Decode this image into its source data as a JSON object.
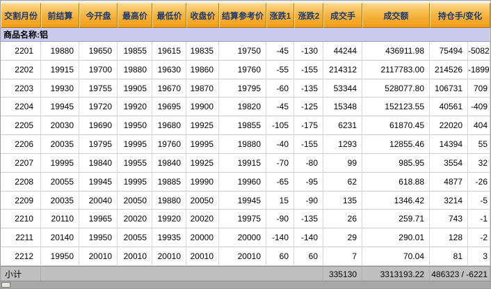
{
  "colors": {
    "header_bg_top": "#FCD98D",
    "header_bg_bottom": "#EF9C17",
    "header_text": "#1B3A70",
    "group_row_bg": "#CACAEC",
    "subtotal_bg": "#C0C0C0",
    "grid_line": "#CCCCCC"
  },
  "table": {
    "headers": [
      "交割月份",
      "前结算",
      "今开盘",
      "最高价",
      "最低价",
      "收盘价",
      "结算参考价",
      "涨跌1",
      "涨跌2",
      "成交手",
      "成交额",
      "持仓手/变化"
    ],
    "column_keys": [
      "month",
      "prev-settle",
      "open",
      "high",
      "low",
      "close",
      "settle-ref",
      "change1",
      "change2",
      "volume",
      "turnover",
      "open-interest",
      "oi-change"
    ],
    "group_label": "商品名称:铝",
    "rows": [
      [
        "2201",
        "19880",
        "19650",
        "19855",
        "19615",
        "19835",
        "19750",
        "-45",
        "-130",
        "44244",
        "436911.98",
        "75494",
        "-5082"
      ],
      [
        "2202",
        "19915",
        "19700",
        "19880",
        "19630",
        "19860",
        "19760",
        "-55",
        "-155",
        "214312",
        "2117783.00",
        "214526",
        "-1899"
      ],
      [
        "2203",
        "19930",
        "19755",
        "19905",
        "19670",
        "19870",
        "19795",
        "-60",
        "-135",
        "53344",
        "528077.80",
        "106731",
        "709"
      ],
      [
        "2204",
        "19945",
        "19720",
        "19920",
        "19695",
        "19900",
        "19820",
        "-45",
        "-125",
        "15348",
        "152123.55",
        "40561",
        "-409"
      ],
      [
        "2205",
        "20030",
        "19690",
        "19950",
        "19680",
        "19925",
        "19855",
        "-105",
        "-175",
        "6231",
        "61870.45",
        "22020",
        "404"
      ],
      [
        "2206",
        "20035",
        "19795",
        "19995",
        "19760",
        "19995",
        "19880",
        "-40",
        "-155",
        "1293",
        "12855.46",
        "14394",
        "55"
      ],
      [
        "2207",
        "19995",
        "19840",
        "19955",
        "19840",
        "19925",
        "19915",
        "-70",
        "-80",
        "99",
        "985.95",
        "3554",
        "32"
      ],
      [
        "2208",
        "20055",
        "19945",
        "19995",
        "19885",
        "19990",
        "19960",
        "-65",
        "-95",
        "62",
        "618.88",
        "4877",
        "-26"
      ],
      [
        "2209",
        "20035",
        "20040",
        "20050",
        "19880",
        "20050",
        "19945",
        "15",
        "-90",
        "135",
        "1346.42",
        "3214",
        "-5"
      ],
      [
        "2210",
        "20110",
        "19965",
        "20020",
        "19920",
        "20020",
        "19975",
        "-90",
        "-135",
        "26",
        "259.71",
        "743",
        "-1"
      ],
      [
        "2211",
        "20140",
        "19950",
        "20055",
        "19935",
        "20000",
        "20000",
        "-140",
        "-140",
        "29",
        "290.01",
        "128",
        "-2"
      ],
      [
        "2212",
        "19950",
        "20010",
        "20010",
        "20010",
        "20010",
        "20010",
        "60",
        "60",
        "7",
        "70.04",
        "81",
        "3"
      ]
    ],
    "subtotal": {
      "label": "小计",
      "volume": "335130",
      "turnover": "3313193.22",
      "open_interest_change": "486323 / -6221"
    }
  }
}
